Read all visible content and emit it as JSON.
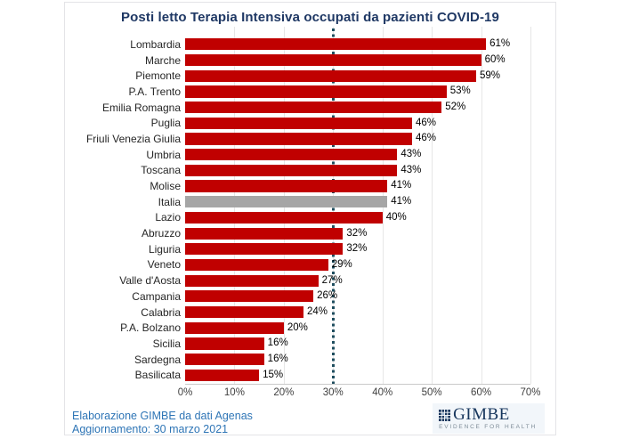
{
  "title": "Posti letto Terapia Intensiva occupati da pazienti COVID-19",
  "chart_data": {
    "type": "bar",
    "orientation": "horizontal",
    "title": "Posti letto Terapia Intensiva occupati da pazienti COVID-19",
    "categories": [
      "Lombardia",
      "Marche",
      "Piemonte",
      "P.A. Trento",
      "Emilia Romagna",
      "Puglia",
      "Friuli Venezia Giulia",
      "Umbria",
      "Toscana",
      "Molise",
      "Italia",
      "Lazio",
      "Abruzzo",
      "Liguria",
      "Veneto",
      "Valle d'Aosta",
      "Campania",
      "Calabria",
      "P.A. Bolzano",
      "Sicilia",
      "Sardegna",
      "Basilicata"
    ],
    "values": [
      61,
      60,
      59,
      53,
      52,
      46,
      46,
      43,
      43,
      41,
      41,
      40,
      32,
      32,
      29,
      27,
      26,
      24,
      20,
      16,
      16,
      15
    ],
    "value_suffix": "%",
    "highlight_category": "Italia",
    "xlim": [
      0,
      70
    ],
    "x_ticks": [
      "0%",
      "10%",
      "20%",
      "30%",
      "40%",
      "50%",
      "60%",
      "70%"
    ],
    "grid": true,
    "legend": "none",
    "reference_line": {
      "value": 30,
      "style": "dotted"
    }
  },
  "colors": {
    "bar": "#C00000",
    "highlight_bar": "#A6A6A6",
    "reference_line": "#1F4E5F",
    "title": "#1F3864",
    "footer_text": "#2E75B6",
    "logo_navy": "#17365D"
  },
  "footer": {
    "line1": "Elaborazione GIMBE da dati Agenas",
    "line2": "Aggiornamento: 30 marzo 2021"
  },
  "logo": {
    "name": "GIMBE",
    "tagline": "EVIDENCE FOR HEALTH"
  }
}
